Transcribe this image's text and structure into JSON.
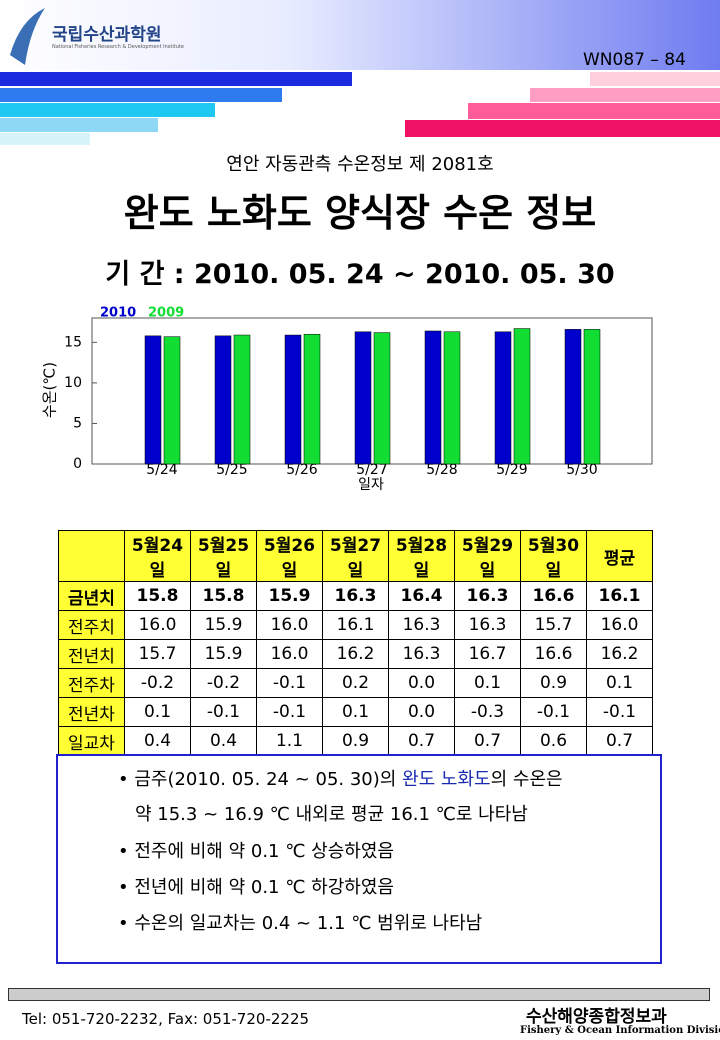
{
  "header": {
    "org": "국립수산과학원",
    "org_en": "National Fisheries Research & Development Institute",
    "code": "WN087 – 84",
    "issue": "연안 자동관측 수온정보 제 2081호",
    "title": "완도 노화도 양식장 수온 정보",
    "period": "기 간 : 2010. 05. 24 ~ 2010. 05. 30"
  },
  "chart_data": {
    "type": "bar",
    "ylabel": "수온(℃)",
    "xlabel": "일자",
    "categories": [
      "5/24",
      "5/25",
      "5/26",
      "5/27",
      "5/28",
      "5/29",
      "5/30"
    ],
    "series": [
      {
        "name": "2010",
        "color": "#0000cc",
        "values": [
          15.8,
          15.8,
          15.9,
          16.3,
          16.4,
          16.3,
          16.6
        ]
      },
      {
        "name": "2009",
        "color": "#11dd33",
        "values": [
          15.7,
          15.9,
          16.0,
          16.2,
          16.3,
          16.7,
          16.6
        ]
      }
    ],
    "ylim": [
      0,
      18
    ],
    "yticks": [
      0,
      5,
      10,
      15
    ],
    "grid": false
  },
  "table": {
    "header": [
      "5월24일",
      "5월25일",
      "5월26일",
      "5월27일",
      "5월28일",
      "5월29일",
      "5월30일",
      "평균"
    ],
    "rows": [
      [
        "금년치",
        "15.8",
        "15.8",
        "15.9",
        "16.3",
        "16.4",
        "16.3",
        "16.6",
        "16.1"
      ],
      [
        "전주치",
        "16.0",
        "15.9",
        "16.0",
        "16.1",
        "16.3",
        "16.3",
        "15.7",
        "16.0"
      ],
      [
        "전년치",
        "15.7",
        "15.9",
        "16.0",
        "16.2",
        "16.3",
        "16.7",
        "16.6",
        "16.2"
      ],
      [
        "전주차",
        "-0.2",
        "-0.2",
        "-0.1",
        "0.2",
        "0.0",
        "0.1",
        "0.9",
        "0.1"
      ],
      [
        "전년차",
        "0.1",
        "-0.1",
        "-0.1",
        "0.1",
        "0.0",
        "-0.3",
        "-0.1",
        "-0.1"
      ],
      [
        "일교차",
        "0.4",
        "0.4",
        "1.1",
        "0.9",
        "0.7",
        "0.7",
        "0.6",
        "0.7"
      ]
    ]
  },
  "notes": {
    "line1": {
      "before": "• 금주(2010. 05. 24 ~ 05. 30)의 ",
      "place": "완도 노화도",
      "after": "의 수온은"
    },
    "line2": "약 15.3 ~ 16.9 ℃ 내외로 평균 16.1 ℃로 나타남",
    "items": [
      "• 전주에 비해 약 0.1 ℃ 상승하였음",
      "• 전년에 비해 약 0.1 ℃ 하강하였음",
      "• 수온의 일교차는 0.4 ~ 1.1 ℃ 범위로 나타남"
    ]
  },
  "footer": {
    "contact": "Tel: 051-720-2232,  Fax: 051-720-2225",
    "division": "수산해양종합정보과",
    "division_en": "Fishery & Ocean Information Division"
  }
}
